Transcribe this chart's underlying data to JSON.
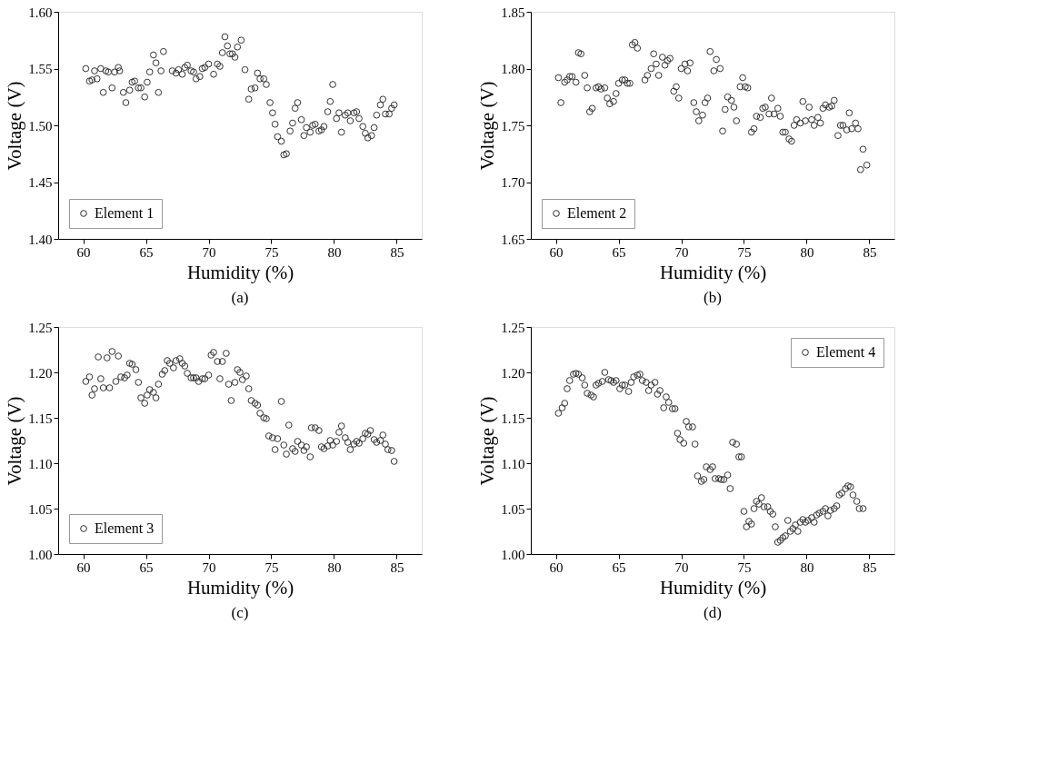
{
  "chart_data": [
    {
      "type": "scatter",
      "xlabel": "Humidity (%)",
      "ylabel": "Voltage (V)",
      "annotations": [
        "(a)"
      ],
      "legend": "bottom left",
      "marker": "circle",
      "grid": false,
      "xlim": [
        58,
        87
      ],
      "xticks": [
        60,
        65,
        70,
        75,
        80,
        85
      ],
      "ylim": [
        1.4,
        1.6
      ],
      "yticks": [
        {
          "value": 1.4,
          "label": "1.40"
        },
        1.45,
        {
          "value": 1.5,
          "label": "1.50"
        },
        1.55,
        {
          "value": 1.6,
          "label": "1.60"
        }
      ],
      "series": [
        {
          "name": "Element 1",
          "color": "#333333",
          "x": [
            60.2,
            60.5,
            60.7,
            60.9,
            61.1,
            61.4,
            61.6,
            61.8,
            62.0,
            62.3,
            62.5,
            62.8,
            62.9,
            63.2,
            63.4,
            63.7,
            63.9,
            64.1,
            64.4,
            64.6,
            64.9,
            65.1,
            65.3,
            65.6,
            65.8,
            66.0,
            66.2,
            66.4,
            67.1,
            67.4,
            67.6,
            67.9,
            68.1,
            68.3,
            68.6,
            68.8,
            69.0,
            69.3,
            69.5,
            69.7,
            70.0,
            70.4,
            70.7,
            70.9,
            71.1,
            71.3,
            71.5,
            71.7,
            71.9,
            72.1,
            72.3,
            72.6,
            72.9,
            73.2,
            73.4,
            73.7,
            73.9,
            74.1,
            74.4,
            74.6,
            74.9,
            75.1,
            75.3,
            75.5,
            75.8,
            76.0,
            76.2,
            76.5,
            76.7,
            76.9,
            77.1,
            77.4,
            77.6,
            77.8,
            78.1,
            78.3,
            78.5,
            78.8,
            79.0,
            79.2,
            79.5,
            79.7,
            79.9,
            80.2,
            80.4,
            80.6,
            80.9,
            81.1,
            81.3,
            81.6,
            81.8,
            82.0,
            82.3,
            82.5,
            82.7,
            83.0,
            83.2,
            83.4,
            83.7,
            83.9,
            84.1,
            84.4,
            84.6,
            84.8
          ],
          "values": [
            1.55,
            1.539,
            1.54,
            1.548,
            1.541,
            1.55,
            1.529,
            1.548,
            1.547,
            1.533,
            1.547,
            1.551,
            1.548,
            1.529,
            1.52,
            1.531,
            1.538,
            1.539,
            1.533,
            1.533,
            1.525,
            1.538,
            1.547,
            1.562,
            1.555,
            1.529,
            1.548,
            1.565,
            1.548,
            1.546,
            1.549,
            1.545,
            1.551,
            1.553,
            1.548,
            1.547,
            1.541,
            1.543,
            1.55,
            1.551,
            1.554,
            1.545,
            1.554,
            1.552,
            1.564,
            1.578,
            1.57,
            1.563,
            1.563,
            1.56,
            1.569,
            1.575,
            1.549,
            1.523,
            1.532,
            1.533,
            1.546,
            1.541,
            1.541,
            1.536,
            1.52,
            1.511,
            1.501,
            1.49,
            1.486,
            1.474,
            1.475,
            1.495,
            1.502,
            1.515,
            1.52,
            1.505,
            1.491,
            1.498,
            1.494,
            1.5,
            1.501,
            1.495,
            1.496,
            1.499,
            1.512,
            1.521,
            1.536,
            1.506,
            1.511,
            1.494,
            1.509,
            1.511,
            1.504,
            1.511,
            1.512,
            1.506,
            1.499,
            1.493,
            1.489,
            1.491,
            1.498,
            1.509,
            1.518,
            1.523,
            1.51,
            1.51,
            1.515,
            1.518
          ]
        }
      ]
    },
    {
      "type": "scatter",
      "xlabel": "Humidity (%)",
      "ylabel": "Voltage (V)",
      "annotations": [
        "(b)"
      ],
      "legend": "bottom left",
      "marker": "circle",
      "grid": false,
      "xlim": [
        58,
        87
      ],
      "xticks": [
        60,
        65,
        70,
        75,
        80,
        85
      ],
      "ylim": [
        1.65,
        1.85
      ],
      "yticks": [
        1.65,
        {
          "value": 1.7,
          "label": "1.70"
        },
        1.75,
        {
          "value": 1.8,
          "label": "1.80"
        },
        1.85
      ],
      "series": [
        {
          "name": "Element 2",
          "color": "#333333",
          "x": [
            60.2,
            60.4,
            60.7,
            60.9,
            61.1,
            61.3,
            61.6,
            61.8,
            62.0,
            62.3,
            62.5,
            62.7,
            62.9,
            63.2,
            63.4,
            63.6,
            63.9,
            64.1,
            64.3,
            64.6,
            64.8,
            65.0,
            65.3,
            65.5,
            65.7,
            65.9,
            66.1,
            66.3,
            66.5,
            67.1,
            67.3,
            67.6,
            67.8,
            68.0,
            68.2,
            68.5,
            68.7,
            68.9,
            69.1,
            69.4,
            69.6,
            69.8,
            70.0,
            70.3,
            70.5,
            70.7,
            71.0,
            71.2,
            71.4,
            71.7,
            71.9,
            72.1,
            72.3,
            72.6,
            72.8,
            73.1,
            73.3,
            73.5,
            73.7,
            74.0,
            74.2,
            74.4,
            74.7,
            74.9,
            75.1,
            75.3,
            75.6,
            75.8,
            76.0,
            76.3,
            76.5,
            76.7,
            77.0,
            77.2,
            77.4,
            77.7,
            77.9,
            78.1,
            78.3,
            78.6,
            78.8,
            79.0,
            79.2,
            79.5,
            79.7,
            79.9,
            80.2,
            80.4,
            80.6,
            80.9,
            81.1,
            81.3,
            81.5,
            81.8,
            82.0,
            82.2,
            82.5,
            82.7,
            82.9,
            83.2,
            83.4,
            83.6,
            83.9,
            84.1,
            84.3,
            84.5,
            84.8
          ],
          "values": [
            1.792,
            1.77,
            1.788,
            1.79,
            1.793,
            1.793,
            1.788,
            1.814,
            1.813,
            1.794,
            1.783,
            1.762,
            1.765,
            1.783,
            1.784,
            1.782,
            1.783,
            1.774,
            1.769,
            1.771,
            1.778,
            1.787,
            1.79,
            1.79,
            1.787,
            1.787,
            1.821,
            1.823,
            1.818,
            1.79,
            1.794,
            1.8,
            1.813,
            1.804,
            1.794,
            1.81,
            1.803,
            1.807,
            1.809,
            1.78,
            1.784,
            1.774,
            1.8,
            1.804,
            1.798,
            1.805,
            1.77,
            1.762,
            1.754,
            1.759,
            1.77,
            1.774,
            1.815,
            1.798,
            1.808,
            1.8,
            1.745,
            1.764,
            1.775,
            1.772,
            1.766,
            1.754,
            1.784,
            1.792,
            1.784,
            1.783,
            1.744,
            1.747,
            1.758,
            1.757,
            1.765,
            1.766,
            1.76,
            1.774,
            1.76,
            1.765,
            1.758,
            1.744,
            1.744,
            1.738,
            1.736,
            1.75,
            1.755,
            1.752,
            1.771,
            1.754,
            1.766,
            1.755,
            1.75,
            1.757,
            1.752,
            1.765,
            1.768,
            1.766,
            1.767,
            1.772,
            1.741,
            1.75,
            1.75,
            1.746,
            1.761,
            1.747,
            1.752,
            1.747,
            1.711,
            1.729,
            1.715
          ]
        }
      ]
    },
    {
      "type": "scatter",
      "xlabel": "Humidity (%)",
      "ylabel": "Voltage (V)",
      "annotations": [
        "(c)"
      ],
      "legend": "bottom left",
      "marker": "circle",
      "grid": false,
      "xlim": [
        58,
        87
      ],
      "xticks": [
        60,
        65,
        70,
        75,
        80,
        85
      ],
      "ylim": [
        1.0,
        1.25
      ],
      "yticks": [
        {
          "value": 1.0,
          "label": "1.00"
        },
        1.05,
        {
          "value": 1.1,
          "label": "1.10"
        },
        1.15,
        {
          "value": 1.2,
          "label": "1.20"
        },
        1.25
      ],
      "series": [
        {
          "name": "Element 3",
          "color": "#333333",
          "x": [
            60.2,
            60.5,
            60.7,
            60.9,
            61.2,
            61.4,
            61.6,
            61.9,
            62.1,
            62.3,
            62.6,
            62.8,
            63.0,
            63.3,
            63.5,
            63.7,
            63.9,
            64.2,
            64.4,
            64.6,
            64.9,
            65.1,
            65.3,
            65.6,
            65.8,
            66.0,
            66.3,
            66.5,
            66.7,
            66.9,
            67.2,
            67.4,
            67.7,
            67.9,
            68.1,
            68.3,
            68.6,
            68.8,
            69.0,
            69.2,
            69.5,
            69.7,
            70.0,
            70.2,
            70.4,
            70.7,
            70.9,
            71.1,
            71.4,
            71.6,
            71.8,
            72.1,
            72.3,
            72.5,
            72.7,
            73.0,
            73.2,
            73.4,
            73.7,
            73.9,
            74.1,
            74.4,
            74.6,
            74.8,
            75.1,
            75.3,
            75.5,
            75.8,
            76.0,
            76.2,
            76.4,
            76.7,
            76.9,
            77.1,
            77.4,
            77.6,
            77.8,
            78.1,
            78.2,
            78.5,
            78.8,
            79.0,
            79.2,
            79.5,
            79.7,
            79.9,
            80.2,
            80.4,
            80.6,
            80.9,
            81.1,
            81.3,
            81.6,
            81.8,
            82.0,
            82.3,
            82.5,
            82.7,
            82.9,
            83.2,
            83.4,
            83.7,
            83.9,
            84.1,
            84.3,
            84.6,
            84.8
          ],
          "values": [
            1.19,
            1.195,
            1.175,
            1.182,
            1.217,
            1.193,
            1.183,
            1.216,
            1.183,
            1.223,
            1.19,
            1.218,
            1.195,
            1.194,
            1.197,
            1.21,
            1.209,
            1.203,
            1.189,
            1.172,
            1.166,
            1.175,
            1.181,
            1.178,
            1.172,
            1.187,
            1.198,
            1.202,
            1.213,
            1.21,
            1.205,
            1.213,
            1.215,
            1.21,
            1.207,
            1.199,
            1.194,
            1.194,
            1.194,
            1.19,
            1.193,
            1.193,
            1.197,
            1.219,
            1.222,
            1.212,
            1.193,
            1.212,
            1.221,
            1.187,
            1.169,
            1.189,
            1.203,
            1.2,
            1.192,
            1.196,
            1.182,
            1.169,
            1.166,
            1.164,
            1.155,
            1.15,
            1.149,
            1.13,
            1.128,
            1.115,
            1.127,
            1.168,
            1.12,
            1.11,
            1.142,
            1.116,
            1.113,
            1.124,
            1.12,
            1.114,
            1.118,
            1.107,
            1.139,
            1.139,
            1.136,
            1.118,
            1.116,
            1.119,
            1.125,
            1.12,
            1.124,
            1.134,
            1.141,
            1.128,
            1.123,
            1.115,
            1.121,
            1.124,
            1.122,
            1.127,
            1.133,
            1.132,
            1.136,
            1.126,
            1.123,
            1.125,
            1.131,
            1.121,
            1.115,
            1.114,
            1.102
          ]
        }
      ]
    },
    {
      "type": "scatter",
      "xlabel": "Humidity (%)",
      "ylabel": "Voltage (V)",
      "annotations": [
        "(d)"
      ],
      "legend": "top right",
      "marker": "circle",
      "grid": false,
      "xlim": [
        58,
        87
      ],
      "xticks": [
        60,
        65,
        70,
        75,
        80,
        85
      ],
      "ylim": [
        1.0,
        1.25
      ],
      "yticks": [
        {
          "value": 1.0,
          "label": "1.00"
        },
        1.05,
        {
          "value": 1.1,
          "label": "1.10"
        },
        1.15,
        {
          "value": 1.2,
          "label": "1.20"
        },
        1.25
      ],
      "series": [
        {
          "name": "Element 4",
          "color": "#333333",
          "x": [
            60.2,
            60.5,
            60.7,
            60.9,
            61.1,
            61.4,
            61.6,
            61.8,
            62.1,
            62.3,
            62.5,
            62.8,
            63.0,
            63.2,
            63.4,
            63.7,
            63.9,
            64.2,
            64.4,
            64.6,
            64.8,
            65.1,
            65.3,
            65.5,
            65.8,
            66.0,
            66.2,
            66.5,
            66.7,
            66.9,
            67.2,
            67.4,
            67.6,
            67.9,
            68.1,
            68.3,
            68.6,
            68.8,
            69.0,
            69.3,
            69.5,
            69.7,
            69.9,
            70.2,
            70.4,
            70.6,
            70.9,
            71.1,
            71.3,
            71.6,
            71.8,
            72.0,
            72.3,
            72.5,
            72.7,
            73.0,
            73.2,
            73.4,
            73.7,
            73.9,
            74.1,
            74.4,
            74.6,
            74.8,
            75.0,
            75.2,
            75.4,
            75.6,
            75.8,
            76.0,
            76.2,
            76.4,
            76.6,
            76.9,
            77.1,
            77.3,
            77.5,
            77.7,
            77.9,
            78.1,
            78.3,
            78.5,
            78.7,
            78.9,
            79.1,
            79.3,
            79.5,
            79.7,
            79.9,
            80.1,
            80.4,
            80.6,
            80.8,
            81.0,
            81.3,
            81.5,
            81.7,
            81.9,
            82.2,
            82.4,
            82.6,
            82.8,
            83.1,
            83.3,
            83.5,
            83.7,
            84.0,
            84.2,
            84.5
          ],
          "values": [
            1.155,
            1.161,
            1.166,
            1.182,
            1.191,
            1.198,
            1.199,
            1.198,
            1.194,
            1.186,
            1.177,
            1.175,
            1.173,
            1.186,
            1.188,
            1.19,
            1.2,
            1.192,
            1.191,
            1.189,
            1.191,
            1.182,
            1.186,
            1.186,
            1.179,
            1.189,
            1.195,
            1.197,
            1.198,
            1.191,
            1.189,
            1.18,
            1.186,
            1.189,
            1.176,
            1.18,
            1.161,
            1.173,
            1.167,
            1.16,
            1.16,
            1.133,
            1.126,
            1.122,
            1.146,
            1.14,
            1.14,
            1.121,
            1.086,
            1.08,
            1.082,
            1.096,
            1.093,
            1.096,
            1.083,
            1.083,
            1.082,
            1.082,
            1.087,
            1.072,
            1.123,
            1.121,
            1.107,
            1.107,
            1.047,
            1.03,
            1.036,
            1.033,
            1.05,
            1.058,
            1.055,
            1.062,
            1.052,
            1.052,
            1.047,
            1.044,
            1.03,
            1.013,
            1.015,
            1.018,
            1.02,
            1.037,
            1.025,
            1.028,
            1.032,
            1.025,
            1.035,
            1.038,
            1.035,
            1.037,
            1.04,
            1.035,
            1.043,
            1.045,
            1.047,
            1.05,
            1.042,
            1.048,
            1.05,
            1.053,
            1.065,
            1.067,
            1.072,
            1.075,
            1.074,
            1.065,
            1.058,
            1.05,
            1.05
          ]
        }
      ]
    }
  ]
}
